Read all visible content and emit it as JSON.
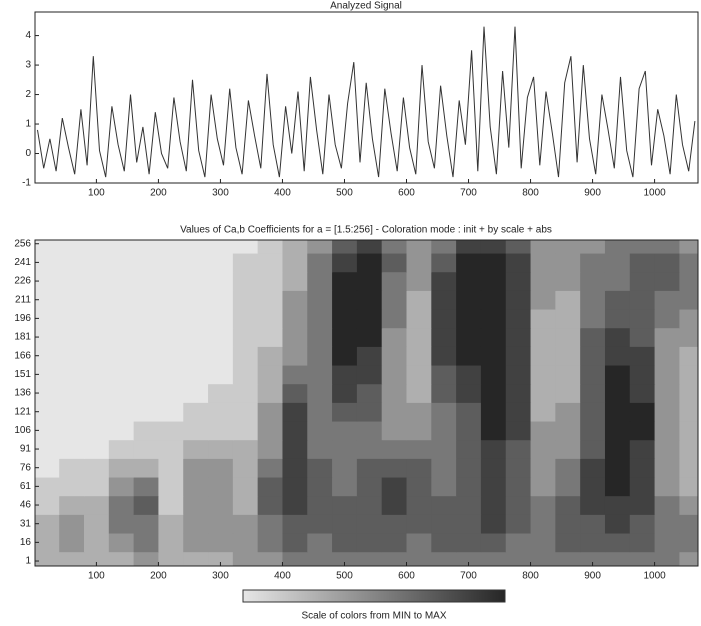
{
  "chart_data": [
    {
      "type": "line",
      "title": "Analyzed Signal",
      "color": "#333333",
      "x": [
        5,
        15,
        25,
        35,
        45,
        55,
        65,
        75,
        85,
        95,
        105,
        115,
        125,
        135,
        145,
        155,
        165,
        175,
        185,
        195,
        205,
        215,
        225,
        235,
        245,
        255,
        265,
        275,
        285,
        295,
        305,
        315,
        325,
        335,
        345,
        355,
        365,
        375,
        385,
        395,
        405,
        415,
        425,
        435,
        445,
        455,
        465,
        475,
        485,
        495,
        505,
        515,
        525,
        535,
        545,
        555,
        565,
        575,
        585,
        595,
        605,
        615,
        625,
        635,
        645,
        655,
        665,
        675,
        685,
        695,
        705,
        715,
        725,
        735,
        745,
        755,
        765,
        775,
        785,
        795,
        805,
        815,
        825,
        835,
        845,
        855,
        865,
        875,
        885,
        895,
        905,
        915,
        925,
        935,
        945,
        955,
        965,
        975,
        985,
        995,
        1005,
        1015,
        1025,
        1035,
        1045,
        1055,
        1065
      ],
      "values": [
        0.8,
        -0.5,
        0.5,
        -0.6,
        1.2,
        0.2,
        -0.7,
        1.5,
        -0.4,
        3.3,
        0.1,
        -0.8,
        1.6,
        0.3,
        -0.6,
        2.0,
        -0.3,
        0.9,
        -0.7,
        1.4,
        0.0,
        -0.5,
        1.9,
        0.4,
        -0.6,
        2.5,
        0.1,
        -0.8,
        2.0,
        0.5,
        -0.4,
        2.2,
        0.2,
        -0.7,
        1.8,
        0.6,
        -0.5,
        2.7,
        0.3,
        -0.8,
        1.6,
        0.0,
        2.1,
        -0.6,
        2.6,
        0.8,
        -0.7,
        2.0,
        0.3,
        -0.5,
        1.7,
        3.1,
        -0.3,
        2.4,
        0.5,
        -0.8,
        2.2,
        0.7,
        -0.6,
        1.9,
        0.2,
        -0.7,
        3.0,
        0.4,
        -0.5,
        2.3,
        0.6,
        -0.8,
        1.8,
        0.3,
        3.5,
        -0.6,
        4.3,
        0.9,
        -0.7,
        2.8,
        0.2,
        4.3,
        -0.5,
        1.9,
        2.6,
        -0.4,
        2.1,
        0.7,
        -0.8,
        2.4,
        3.3,
        -0.3,
        3.0,
        0.5,
        -0.7,
        2.0,
        0.8,
        -0.5,
        2.6,
        0.1,
        -0.8,
        2.2,
        2.8,
        -0.4,
        1.5,
        0.6,
        -0.7,
        2.0,
        0.3,
        -0.6,
        1.1
      ],
      "xlim": [
        1,
        1070
      ],
      "ylim": [
        -1,
        4.8
      ],
      "xticks": [
        100,
        200,
        300,
        400,
        500,
        600,
        700,
        800,
        900,
        1000
      ],
      "yticks": [
        -1,
        0,
        1,
        2,
        3,
        4
      ]
    },
    {
      "type": "heatmap",
      "title": "Values of Ca,b Coefficients for a = [1.5:256] - Coloration mode : init + by scale + abs",
      "colors": [
        "#e6e6e6",
        "#262626"
      ],
      "x": [
        20,
        60,
        100,
        140,
        180,
        220,
        260,
        300,
        340,
        380,
        420,
        460,
        500,
        540,
        580,
        620,
        660,
        700,
        740,
        780,
        820,
        860,
        900,
        940,
        980,
        1020,
        1060
      ],
      "y": [
        1,
        16,
        31,
        46,
        61,
        76,
        91,
        106,
        121,
        136,
        151,
        166,
        181,
        196,
        211,
        226,
        241,
        256
      ],
      "z": [
        [
          0.3,
          0.3,
          0.3,
          0.3,
          0.4,
          0.3,
          0.3,
          0.3,
          0.4,
          0.4,
          0.5,
          0.5,
          0.5,
          0.5,
          0.5,
          0.5,
          0.5,
          0.5,
          0.5,
          0.5,
          0.5,
          0.5,
          0.5,
          0.5,
          0.5,
          0.5,
          0.4
        ],
        [
          0.3,
          0.4,
          0.3,
          0.4,
          0.5,
          0.3,
          0.4,
          0.4,
          0.4,
          0.5,
          0.6,
          0.5,
          0.6,
          0.6,
          0.6,
          0.5,
          0.6,
          0.6,
          0.6,
          0.5,
          0.5,
          0.6,
          0.6,
          0.6,
          0.6,
          0.5,
          0.5
        ],
        [
          0.3,
          0.4,
          0.3,
          0.5,
          0.5,
          0.3,
          0.4,
          0.4,
          0.4,
          0.5,
          0.6,
          0.6,
          0.6,
          0.6,
          0.6,
          0.6,
          0.6,
          0.6,
          0.7,
          0.6,
          0.5,
          0.6,
          0.6,
          0.7,
          0.6,
          0.5,
          0.5
        ],
        [
          0.2,
          0.3,
          0.3,
          0.5,
          0.6,
          0.2,
          0.4,
          0.4,
          0.3,
          0.6,
          0.7,
          0.6,
          0.6,
          0.6,
          0.7,
          0.6,
          0.6,
          0.6,
          0.7,
          0.6,
          0.5,
          0.6,
          0.7,
          0.7,
          0.7,
          0.5,
          0.4
        ],
        [
          0.2,
          0.2,
          0.2,
          0.4,
          0.5,
          0.2,
          0.4,
          0.4,
          0.3,
          0.6,
          0.7,
          0.6,
          0.5,
          0.6,
          0.7,
          0.6,
          0.5,
          0.6,
          0.7,
          0.6,
          0.4,
          0.5,
          0.7,
          0.8,
          0.7,
          0.4,
          0.3
        ],
        [
          0.1,
          0.2,
          0.2,
          0.3,
          0.3,
          0.2,
          0.4,
          0.4,
          0.3,
          0.5,
          0.7,
          0.6,
          0.5,
          0.6,
          0.6,
          0.6,
          0.5,
          0.6,
          0.7,
          0.6,
          0.4,
          0.5,
          0.7,
          0.8,
          0.7,
          0.4,
          0.3
        ],
        [
          0.1,
          0.1,
          0.1,
          0.2,
          0.2,
          0.2,
          0.3,
          0.3,
          0.3,
          0.4,
          0.7,
          0.5,
          0.5,
          0.5,
          0.5,
          0.5,
          0.5,
          0.6,
          0.7,
          0.6,
          0.4,
          0.4,
          0.6,
          0.8,
          0.7,
          0.4,
          0.3
        ],
        [
          0.1,
          0.1,
          0.1,
          0.1,
          0.2,
          0.2,
          0.2,
          0.2,
          0.2,
          0.4,
          0.7,
          0.5,
          0.5,
          0.5,
          0.4,
          0.4,
          0.5,
          0.6,
          0.8,
          0.7,
          0.4,
          0.4,
          0.6,
          0.8,
          0.8,
          0.4,
          0.3
        ],
        [
          0.1,
          0.1,
          0.1,
          0.1,
          0.1,
          0.1,
          0.2,
          0.2,
          0.2,
          0.4,
          0.7,
          0.5,
          0.6,
          0.6,
          0.4,
          0.4,
          0.5,
          0.6,
          0.8,
          0.7,
          0.3,
          0.4,
          0.6,
          0.8,
          0.8,
          0.4,
          0.3
        ],
        [
          0.1,
          0.1,
          0.1,
          0.1,
          0.1,
          0.1,
          0.1,
          0.2,
          0.2,
          0.3,
          0.6,
          0.5,
          0.7,
          0.6,
          0.4,
          0.3,
          0.6,
          0.7,
          0.8,
          0.7,
          0.3,
          0.3,
          0.6,
          0.8,
          0.7,
          0.4,
          0.3
        ],
        [
          0.1,
          0.1,
          0.1,
          0.1,
          0.1,
          0.1,
          0.1,
          0.1,
          0.2,
          0.3,
          0.5,
          0.5,
          0.7,
          0.7,
          0.4,
          0.3,
          0.6,
          0.7,
          0.8,
          0.7,
          0.3,
          0.3,
          0.6,
          0.8,
          0.7,
          0.4,
          0.3
        ],
        [
          0.1,
          0.1,
          0.1,
          0.1,
          0.1,
          0.1,
          0.1,
          0.1,
          0.2,
          0.3,
          0.4,
          0.5,
          0.8,
          0.7,
          0.4,
          0.3,
          0.7,
          0.8,
          0.8,
          0.7,
          0.3,
          0.3,
          0.6,
          0.7,
          0.7,
          0.4,
          0.3
        ],
        [
          0.1,
          0.1,
          0.1,
          0.1,
          0.1,
          0.1,
          0.1,
          0.1,
          0.2,
          0.2,
          0.4,
          0.5,
          0.8,
          0.8,
          0.4,
          0.3,
          0.7,
          0.8,
          0.8,
          0.7,
          0.3,
          0.3,
          0.6,
          0.7,
          0.6,
          0.4,
          0.4
        ],
        [
          0.1,
          0.1,
          0.1,
          0.1,
          0.1,
          0.1,
          0.1,
          0.1,
          0.2,
          0.2,
          0.4,
          0.5,
          0.8,
          0.8,
          0.5,
          0.3,
          0.7,
          0.8,
          0.8,
          0.7,
          0.3,
          0.3,
          0.5,
          0.6,
          0.6,
          0.5,
          0.4
        ],
        [
          0.1,
          0.1,
          0.1,
          0.1,
          0.1,
          0.1,
          0.1,
          0.1,
          0.2,
          0.2,
          0.4,
          0.5,
          0.8,
          0.8,
          0.5,
          0.3,
          0.7,
          0.8,
          0.8,
          0.7,
          0.4,
          0.3,
          0.5,
          0.6,
          0.6,
          0.5,
          0.5
        ],
        [
          0.1,
          0.1,
          0.1,
          0.1,
          0.1,
          0.1,
          0.1,
          0.1,
          0.2,
          0.2,
          0.3,
          0.5,
          0.8,
          0.8,
          0.5,
          0.4,
          0.7,
          0.8,
          0.8,
          0.7,
          0.4,
          0.4,
          0.5,
          0.5,
          0.6,
          0.6,
          0.5
        ],
        [
          0.1,
          0.1,
          0.1,
          0.1,
          0.1,
          0.1,
          0.1,
          0.1,
          0.2,
          0.2,
          0.3,
          0.5,
          0.7,
          0.8,
          0.6,
          0.4,
          0.6,
          0.8,
          0.8,
          0.7,
          0.4,
          0.4,
          0.5,
          0.5,
          0.6,
          0.6,
          0.5
        ],
        [
          0.1,
          0.1,
          0.1,
          0.1,
          0.1,
          0.1,
          0.1,
          0.1,
          0.1,
          0.2,
          0.3,
          0.4,
          0.6,
          0.7,
          0.5,
          0.4,
          0.5,
          0.7,
          0.7,
          0.6,
          0.4,
          0.4,
          0.4,
          0.5,
          0.5,
          0.5,
          0.4
        ]
      ],
      "xlim": [
        1,
        1070
      ],
      "ylim": [
        -3,
        259
      ],
      "xticks": [
        100,
        200,
        300,
        400,
        500,
        600,
        700,
        800,
        900,
        1000
      ],
      "yticks": [
        256,
        241,
        226,
        211,
        196,
        181,
        166,
        151,
        136,
        121,
        106,
        91,
        76,
        61,
        46,
        31,
        16,
        1
      ]
    }
  ],
  "colorbar_label": "Scale of colors from MIN to MAX"
}
